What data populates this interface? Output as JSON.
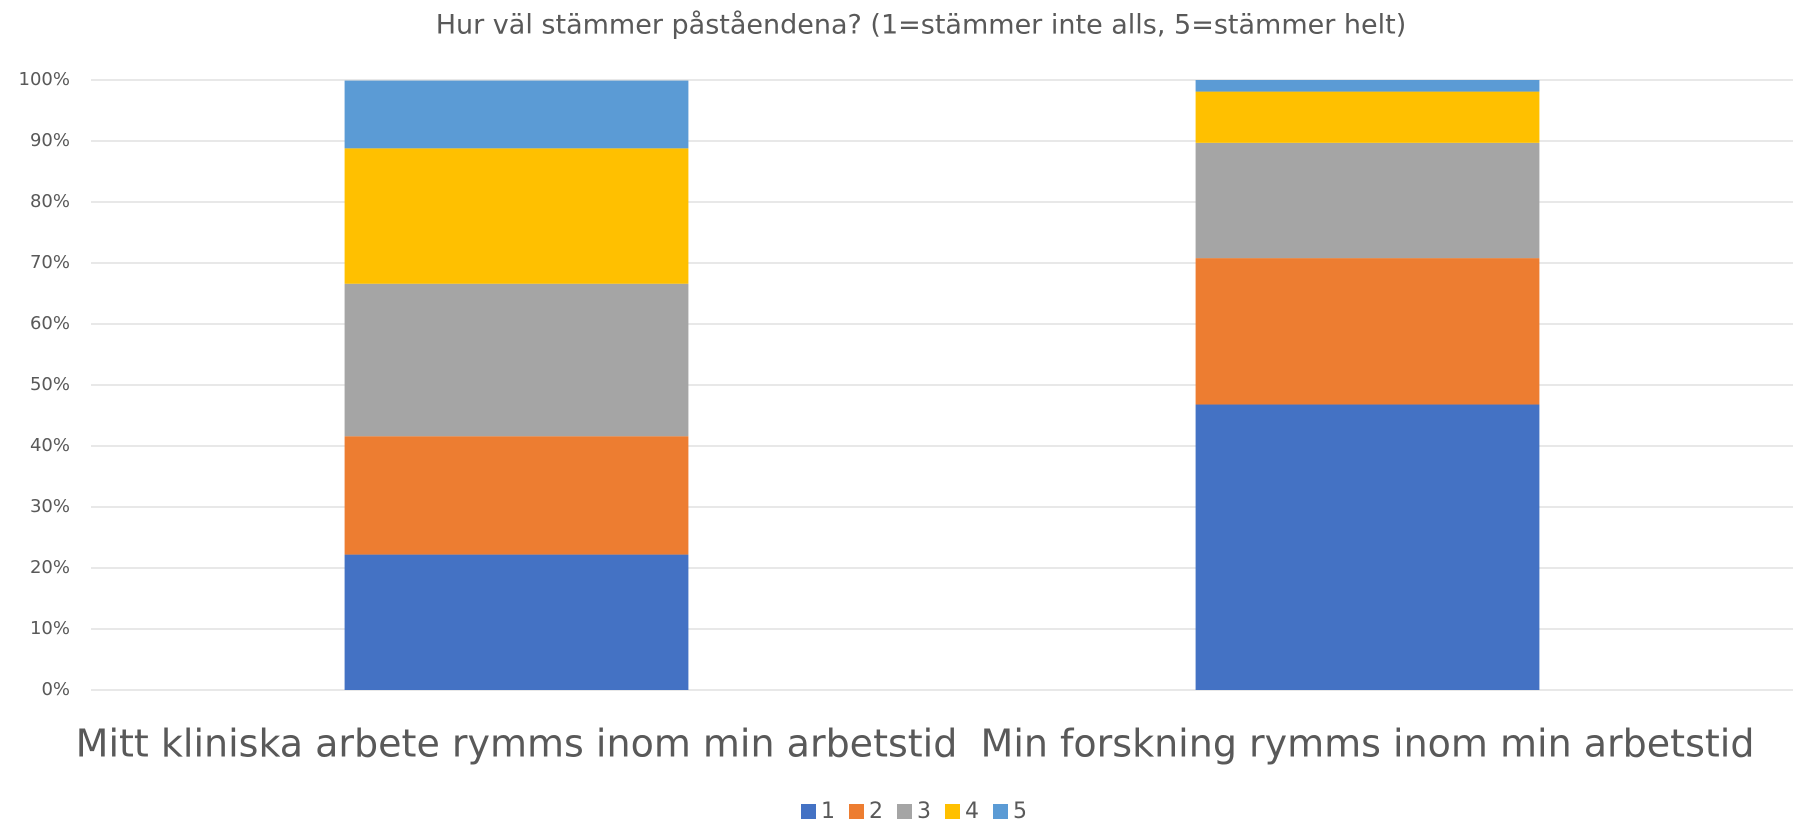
{
  "chart_data": {
    "type": "stacked_bar",
    "title": "Hur väl stämmer påståendena? (1=stämmer inte alls, 5=stämmer helt)",
    "categories": [
      "Mitt kliniska arbete rymms inom min arbetstid",
      "Min forskning rymms inom min arbetstid"
    ],
    "series": [
      {
        "name": "1",
        "color": "#4472c4",
        "values": [
          22.2,
          46.8
        ]
      },
      {
        "name": "2",
        "color": "#ed7d31",
        "values": [
          19.4,
          24.0
        ]
      },
      {
        "name": "3",
        "color": "#a5a5a5",
        "values": [
          25.0,
          18.9
        ]
      },
      {
        "name": "4",
        "color": "#ffc000",
        "values": [
          22.2,
          8.4
        ]
      },
      {
        "name": "5",
        "color": "#5b9bd5",
        "values": [
          11.1,
          1.9
        ]
      }
    ],
    "ylim": [
      0,
      100
    ],
    "yticks": [
      {
        "value": 0,
        "label": "0%"
      },
      {
        "value": 10,
        "label": "10%"
      },
      {
        "value": 20,
        "label": "20%"
      },
      {
        "value": 30,
        "label": "30%"
      },
      {
        "value": 40,
        "label": "40%"
      },
      {
        "value": 50,
        "label": "50%"
      },
      {
        "value": 60,
        "label": "60%"
      },
      {
        "value": 70,
        "label": "70%"
      },
      {
        "value": 80,
        "label": "80%"
      },
      {
        "value": 90,
        "label": "90%"
      },
      {
        "value": 100,
        "label": "100%"
      }
    ],
    "grid": true,
    "legend": "bottom"
  }
}
